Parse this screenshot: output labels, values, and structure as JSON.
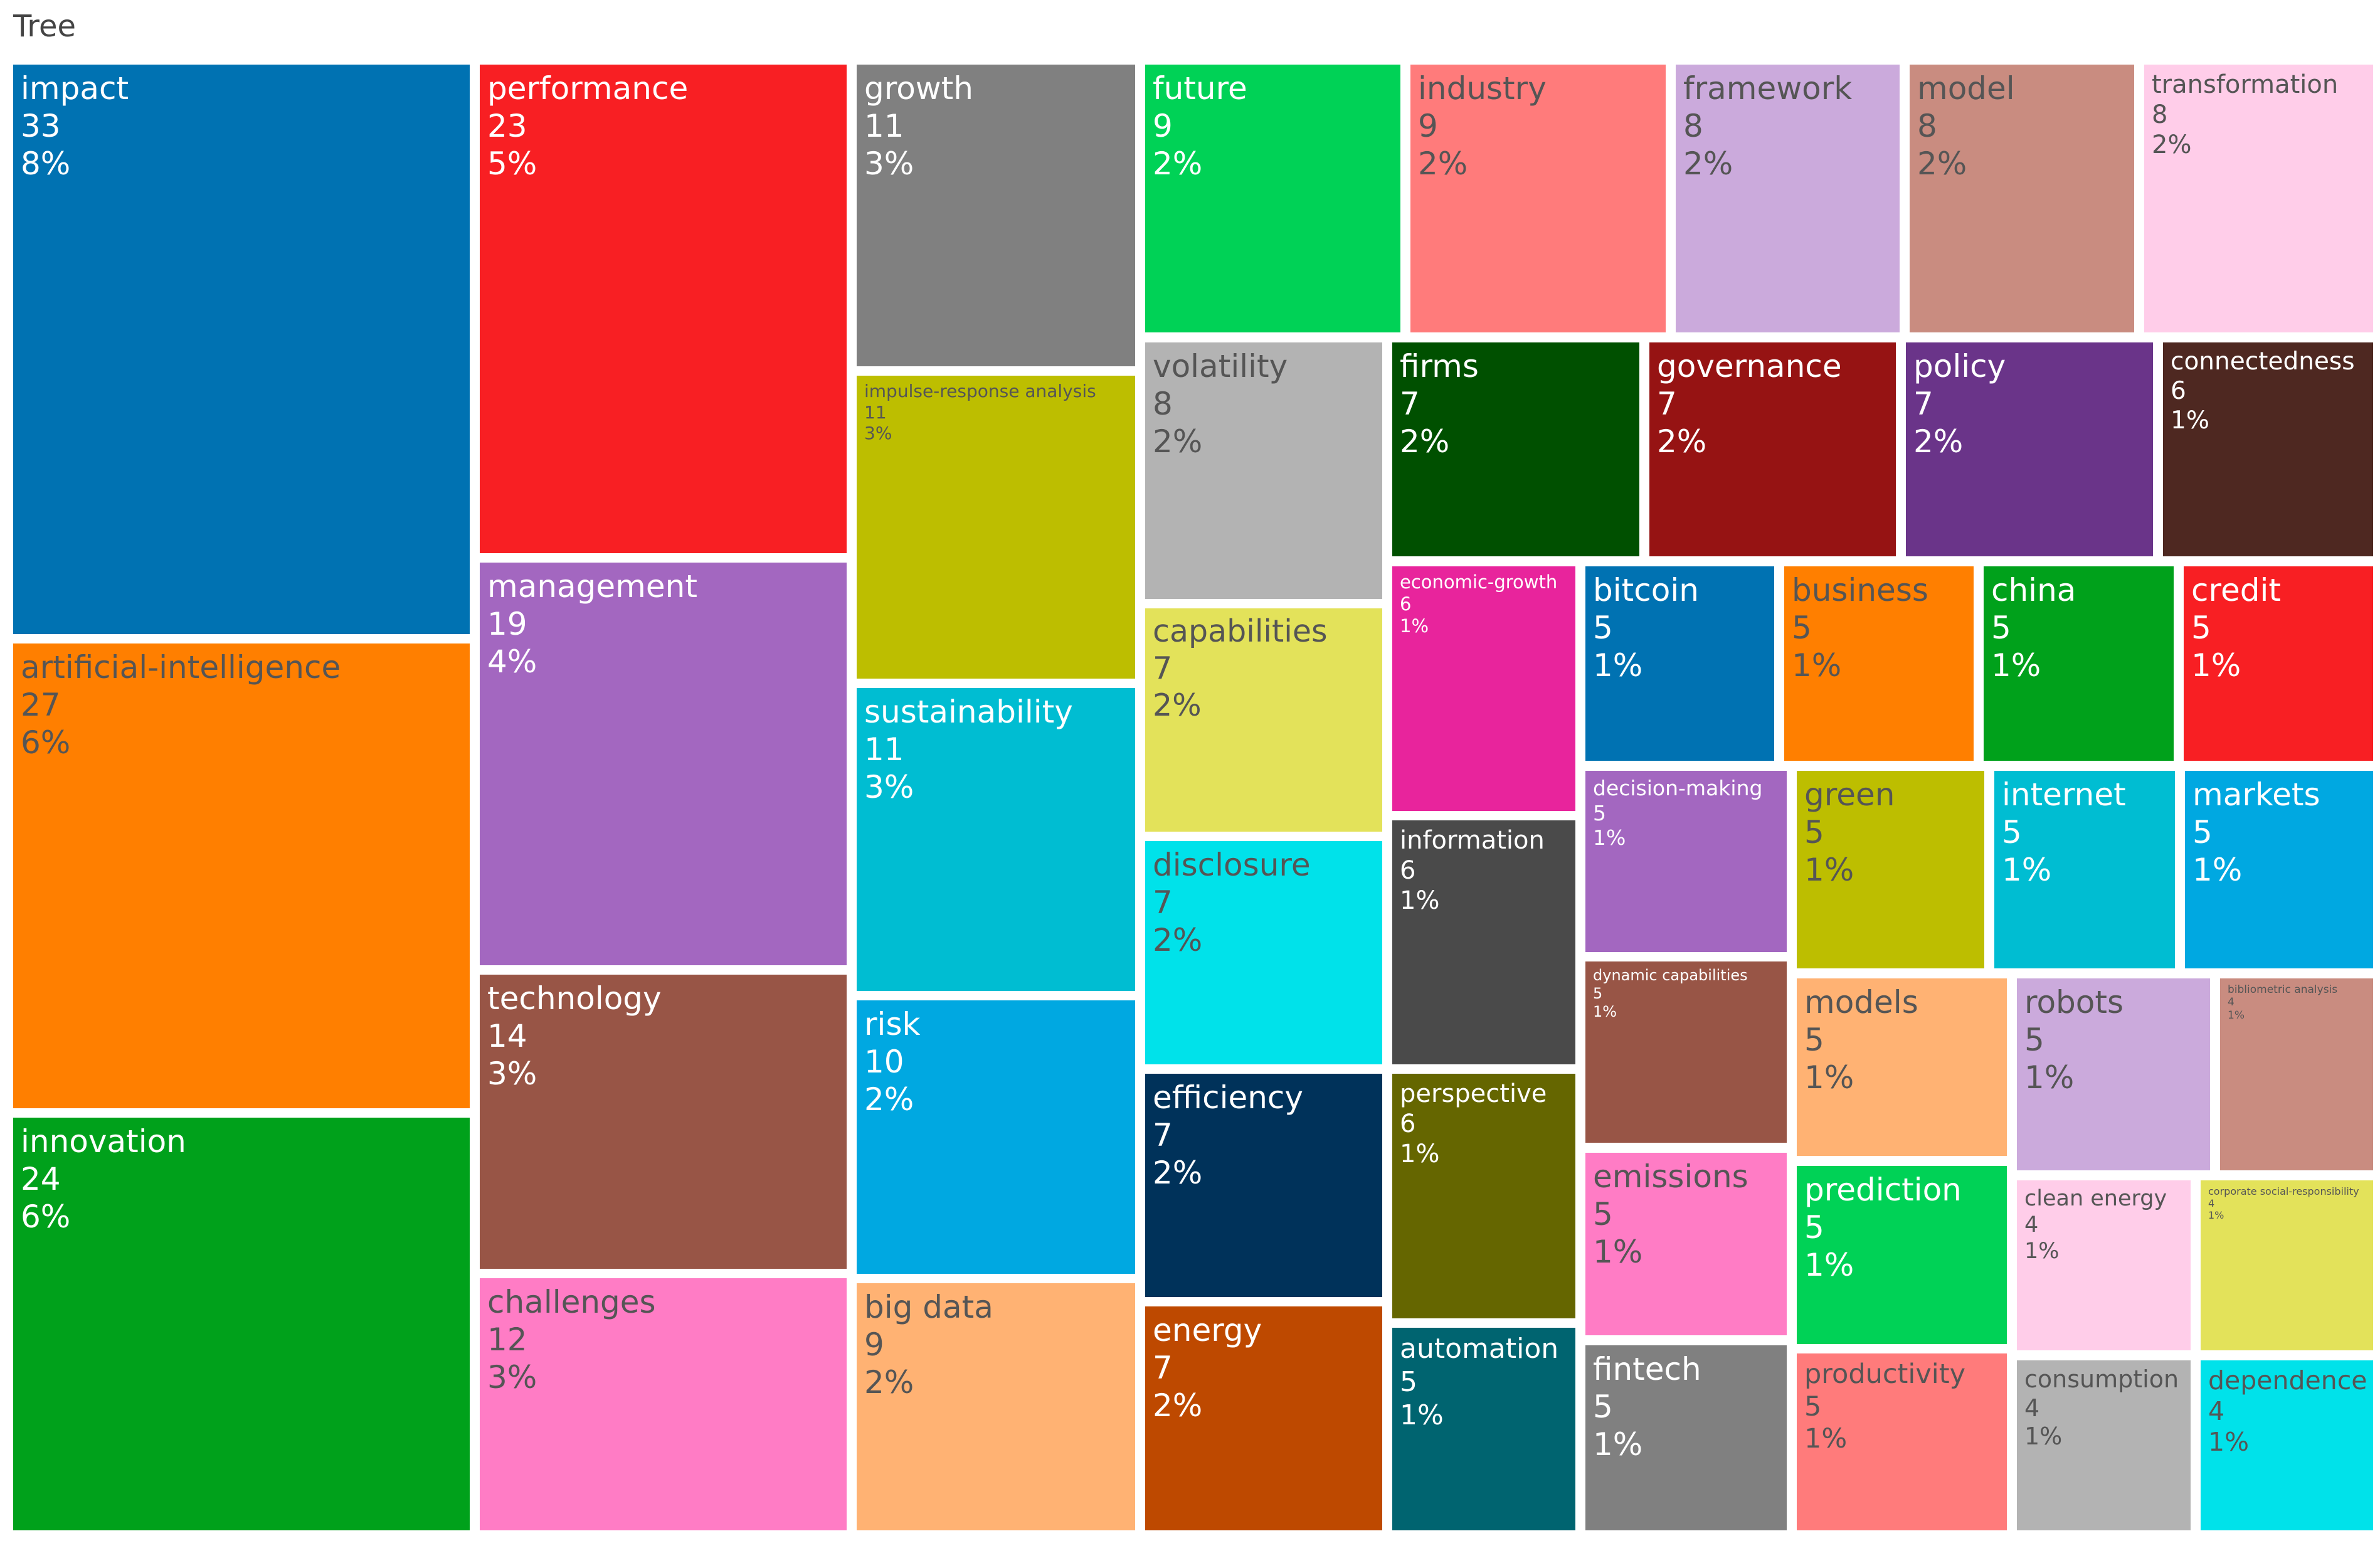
{
  "title": "Tree",
  "chart_data": {
    "type": "treemap",
    "items": [
      {
        "label": "impact",
        "value": 33,
        "percent": "8%",
        "color": "#0072B2"
      },
      {
        "label": "artificial-intelligence",
        "value": 27,
        "percent": "6%",
        "color": "#FF7F00"
      },
      {
        "label": "innovation",
        "value": 24,
        "percent": "6%",
        "color": "#00A11B"
      },
      {
        "label": "performance",
        "value": 23,
        "percent": "5%",
        "color": "#F81F23"
      },
      {
        "label": "management",
        "value": 19,
        "percent": "4%",
        "color": "#A367C0"
      },
      {
        "label": "technology",
        "value": 14,
        "percent": "3%",
        "color": "#985546"
      },
      {
        "label": "challenges",
        "value": 12,
        "percent": "3%",
        "color": "#FF7CC5"
      },
      {
        "label": "growth",
        "value": 11,
        "percent": "3%",
        "color": "#808080"
      },
      {
        "label": "impulse-response analysis",
        "value": 11,
        "percent": "3%",
        "color": "#BDBE00"
      },
      {
        "label": "sustainability",
        "value": 11,
        "percent": "3%",
        "color": "#00BDD2"
      },
      {
        "label": "risk",
        "value": 10,
        "percent": "2%",
        "color": "#00A8E1"
      },
      {
        "label": "big data",
        "value": 9,
        "percent": "2%",
        "color": "#FFB273"
      },
      {
        "label": "future",
        "value": 9,
        "percent": "2%",
        "color": "#00D256"
      },
      {
        "label": "industry",
        "value": 9,
        "percent": "2%",
        "color": "#FF7B7B"
      },
      {
        "label": "framework",
        "value": 8,
        "percent": "2%",
        "color": "#CBAADC"
      },
      {
        "label": "model",
        "value": 8,
        "percent": "2%",
        "color": "#C98C80"
      },
      {
        "label": "transformation",
        "value": 8,
        "percent": "2%",
        "color": "#FFCDE9"
      },
      {
        "label": "volatility",
        "value": 8,
        "percent": "2%",
        "color": "#B3B3B3"
      },
      {
        "label": "capabilities",
        "value": 7,
        "percent": "2%",
        "color": "#E3E25A"
      },
      {
        "label": "disclosure",
        "value": 7,
        "percent": "2%",
        "color": "#00E2EA"
      },
      {
        "label": "efficiency",
        "value": 7,
        "percent": "2%",
        "color": "#00325A"
      },
      {
        "label": "energy",
        "value": 7,
        "percent": "2%",
        "color": "#BE4900"
      },
      {
        "label": "firms",
        "value": 7,
        "percent": "2%",
        "color": "#005000"
      },
      {
        "label": "governance",
        "value": 7,
        "percent": "2%",
        "color": "#961313"
      },
      {
        "label": "policy",
        "value": 7,
        "percent": "2%",
        "color": "#6A3489"
      },
      {
        "label": "connectedness",
        "value": 6,
        "percent": "1%",
        "color": "#4E2821"
      },
      {
        "label": "economic-growth",
        "value": 6,
        "percent": "1%",
        "color": "#E8249C"
      },
      {
        "label": "information",
        "value": 6,
        "percent": "1%",
        "color": "#4A4A4A"
      },
      {
        "label": "perspective",
        "value": 6,
        "percent": "1%",
        "color": "#656600"
      },
      {
        "label": "automation",
        "value": 5,
        "percent": "1%",
        "color": "#006470"
      },
      {
        "label": "bitcoin",
        "value": 5,
        "percent": "1%",
        "color": "#0072B2"
      },
      {
        "label": "business",
        "value": 5,
        "percent": "1%",
        "color": "#FF7F00"
      },
      {
        "label": "china",
        "value": 5,
        "percent": "1%",
        "color": "#00A11B"
      },
      {
        "label": "credit",
        "value": 5,
        "percent": "1%",
        "color": "#F81F23"
      },
      {
        "label": "decision-making",
        "value": 5,
        "percent": "1%",
        "color": "#A367C0"
      },
      {
        "label": "dynamic capabilities",
        "value": 5,
        "percent": "1%",
        "color": "#985546"
      },
      {
        "label": "emissions",
        "value": 5,
        "percent": "1%",
        "color": "#FF7CC5"
      },
      {
        "label": "fintech",
        "value": 5,
        "percent": "1%",
        "color": "#808080"
      },
      {
        "label": "green",
        "value": 5,
        "percent": "1%",
        "color": "#BDBE00"
      },
      {
        "label": "internet",
        "value": 5,
        "percent": "1%",
        "color": "#00BDD2"
      },
      {
        "label": "markets",
        "value": 5,
        "percent": "1%",
        "color": "#00A8E1"
      },
      {
        "label": "models",
        "value": 5,
        "percent": "1%",
        "color": "#FFB273"
      },
      {
        "label": "prediction",
        "value": 5,
        "percent": "1%",
        "color": "#00D256"
      },
      {
        "label": "productivity",
        "value": 5,
        "percent": "1%",
        "color": "#FF7B7B"
      },
      {
        "label": "robots",
        "value": 5,
        "percent": "1%",
        "color": "#CBAADC"
      },
      {
        "label": "bibliometric analysis",
        "value": 4,
        "percent": "1%",
        "color": "#C98C80"
      },
      {
        "label": "clean energy",
        "value": 4,
        "percent": "1%",
        "color": "#FFCDE9"
      },
      {
        "label": "consumption",
        "value": 4,
        "percent": "1%",
        "color": "#B3B3B3"
      },
      {
        "label": "corporate social-responsibility",
        "value": 4,
        "percent": "1%",
        "color": "#E3E25A"
      },
      {
        "label": "dependence",
        "value": 4,
        "percent": "1%",
        "color": "#00E2EA"
      }
    ]
  }
}
